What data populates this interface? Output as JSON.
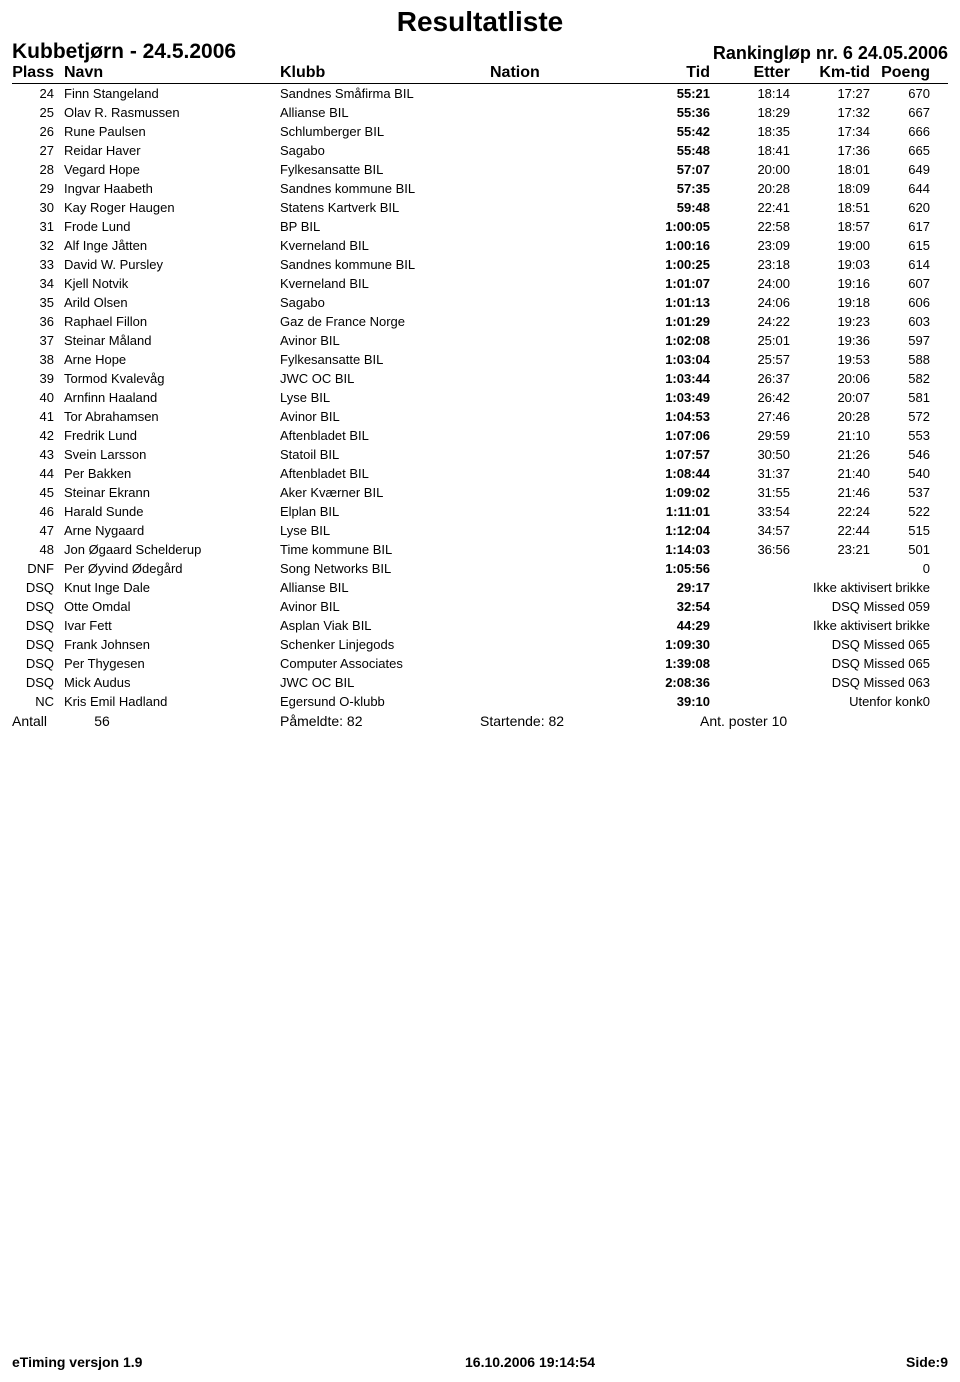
{
  "title": "Resultatliste",
  "subtitle_left": "Kubbetjørn - 24.5.2006",
  "subtitle_right": "Rankingløp nr. 6  24.05.2006",
  "columns": {
    "plass": "Plass",
    "navn": "Navn",
    "klubb": "Klubb",
    "nation": "Nation",
    "tid": "Tid",
    "etter": "Etter",
    "kmtid": "Km-tid",
    "poeng": "Poeng"
  },
  "rows": [
    {
      "plass": "24",
      "navn": "Finn Stangeland",
      "klubb": "Sandnes Småfirma BIL",
      "tid": "55:21",
      "etter": "18:14",
      "kmtid": "17:27",
      "poeng": "670"
    },
    {
      "plass": "25",
      "navn": "Olav R. Rasmussen",
      "klubb": "Allianse BIL",
      "tid": "55:36",
      "etter": "18:29",
      "kmtid": "17:32",
      "poeng": "667"
    },
    {
      "plass": "26",
      "navn": "Rune Paulsen",
      "klubb": "Schlumberger BIL",
      "tid": "55:42",
      "etter": "18:35",
      "kmtid": "17:34",
      "poeng": "666"
    },
    {
      "plass": "27",
      "navn": "Reidar Haver",
      "klubb": "Sagabo",
      "tid": "55:48",
      "etter": "18:41",
      "kmtid": "17:36",
      "poeng": "665"
    },
    {
      "plass": "28",
      "navn": "Vegard Hope",
      "klubb": "Fylkesansatte BIL",
      "tid": "57:07",
      "etter": "20:00",
      "kmtid": "18:01",
      "poeng": "649"
    },
    {
      "plass": "29",
      "navn": "Ingvar Haabeth",
      "klubb": "Sandnes kommune BIL",
      "tid": "57:35",
      "etter": "20:28",
      "kmtid": "18:09",
      "poeng": "644"
    },
    {
      "plass": "30",
      "navn": "Kay Roger Haugen",
      "klubb": "Statens Kartverk BIL",
      "tid": "59:48",
      "etter": "22:41",
      "kmtid": "18:51",
      "poeng": "620"
    },
    {
      "plass": "31",
      "navn": "Frode Lund",
      "klubb": "BP BIL",
      "tid": "1:00:05",
      "etter": "22:58",
      "kmtid": "18:57",
      "poeng": "617"
    },
    {
      "plass": "32",
      "navn": "Alf Inge Jåtten",
      "klubb": "Kverneland BIL",
      "tid": "1:00:16",
      "etter": "23:09",
      "kmtid": "19:00",
      "poeng": "615"
    },
    {
      "plass": "33",
      "navn": "David W. Pursley",
      "klubb": "Sandnes kommune BIL",
      "tid": "1:00:25",
      "etter": "23:18",
      "kmtid": "19:03",
      "poeng": "614"
    },
    {
      "plass": "34",
      "navn": "Kjell Notvik",
      "klubb": "Kverneland BIL",
      "tid": "1:01:07",
      "etter": "24:00",
      "kmtid": "19:16",
      "poeng": "607"
    },
    {
      "plass": "35",
      "navn": "Arild Olsen",
      "klubb": "Sagabo",
      "tid": "1:01:13",
      "etter": "24:06",
      "kmtid": "19:18",
      "poeng": "606"
    },
    {
      "plass": "36",
      "navn": "Raphael Fillon",
      "klubb": "Gaz de France Norge",
      "tid": "1:01:29",
      "etter": "24:22",
      "kmtid": "19:23",
      "poeng": "603"
    },
    {
      "plass": "37",
      "navn": "Steinar Måland",
      "klubb": "Avinor BIL",
      "tid": "1:02:08",
      "etter": "25:01",
      "kmtid": "19:36",
      "poeng": "597"
    },
    {
      "plass": "38",
      "navn": "Arne Hope",
      "klubb": "Fylkesansatte BIL",
      "tid": "1:03:04",
      "etter": "25:57",
      "kmtid": "19:53",
      "poeng": "588"
    },
    {
      "plass": "39",
      "navn": "Tormod Kvalevåg",
      "klubb": "JWC OC BIL",
      "tid": "1:03:44",
      "etter": "26:37",
      "kmtid": "20:06",
      "poeng": "582"
    },
    {
      "plass": "40",
      "navn": "Arnfinn Haaland",
      "klubb": "Lyse BIL",
      "tid": "1:03:49",
      "etter": "26:42",
      "kmtid": "20:07",
      "poeng": "581"
    },
    {
      "plass": "41",
      "navn": "Tor Abrahamsen",
      "klubb": "Avinor BIL",
      "tid": "1:04:53",
      "etter": "27:46",
      "kmtid": "20:28",
      "poeng": "572"
    },
    {
      "plass": "42",
      "navn": "Fredrik Lund",
      "klubb": "Aftenbladet BIL",
      "tid": "1:07:06",
      "etter": "29:59",
      "kmtid": "21:10",
      "poeng": "553"
    },
    {
      "plass": "43",
      "navn": "Svein Larsson",
      "klubb": "Statoil BIL",
      "tid": "1:07:57",
      "etter": "30:50",
      "kmtid": "21:26",
      "poeng": "546"
    },
    {
      "plass": "44",
      "navn": "Per Bakken",
      "klubb": "Aftenbladet BIL",
      "tid": "1:08:44",
      "etter": "31:37",
      "kmtid": "21:40",
      "poeng": "540"
    },
    {
      "plass": "45",
      "navn": "Steinar Ekrann",
      "klubb": "Aker Kværner BIL",
      "tid": "1:09:02",
      "etter": "31:55",
      "kmtid": "21:46",
      "poeng": "537"
    },
    {
      "plass": "46",
      "navn": "Harald Sunde",
      "klubb": "Elplan BIL",
      "tid": "1:11:01",
      "etter": "33:54",
      "kmtid": "22:24",
      "poeng": "522"
    },
    {
      "plass": "47",
      "navn": "Arne Nygaard",
      "klubb": "Lyse BIL",
      "tid": "1:12:04",
      "etter": "34:57",
      "kmtid": "22:44",
      "poeng": "515"
    },
    {
      "plass": "48",
      "navn": "Jon Øgaard Schelderup",
      "klubb": "Time kommune BIL",
      "tid": "1:14:03",
      "etter": "36:56",
      "kmtid": "23:21",
      "poeng": "501"
    },
    {
      "plass": "DNF",
      "navn": "Per Øyvind Ødegård",
      "klubb": "Song Networks BIL",
      "tid": "1:05:56",
      "etter": "",
      "kmtid": "",
      "poeng": "0"
    },
    {
      "plass": "DSQ",
      "navn": "Knut Inge Dale",
      "klubb": "Allianse BIL",
      "tid": "29:17",
      "status": "Ikke aktivisert brikke"
    },
    {
      "plass": "DSQ",
      "navn": "Otte Omdal",
      "klubb": "Avinor BIL",
      "tid": "32:54",
      "status": "DSQ Missed 059"
    },
    {
      "plass": "DSQ",
      "navn": "Ivar Fett",
      "klubb": "Asplan Viak BIL",
      "tid": "44:29",
      "status": "Ikke aktivisert brikke"
    },
    {
      "plass": "DSQ",
      "navn": "Frank Johnsen",
      "klubb": "Schenker Linjegods",
      "tid": "1:09:30",
      "status": "DSQ Missed 065"
    },
    {
      "plass": "DSQ",
      "navn": "Per Thygesen",
      "klubb": "Computer Associates",
      "tid": "1:39:08",
      "status": "DSQ Missed 065"
    },
    {
      "plass": "DSQ",
      "navn": "Mick Audus",
      "klubb": "JWC OC BIL",
      "tid": "2:08:36",
      "status": "DSQ Missed 063"
    },
    {
      "plass": "NC",
      "navn": "Kris Emil Hadland",
      "klubb": "Egersund O-klubb",
      "tid": "39:10",
      "status": "Utenfor konk0"
    }
  ],
  "summary": {
    "antall_label": "Antall",
    "antall_val": "56",
    "pameldte": "Påmeldte:  82",
    "startende": "Startende: 82",
    "poster": "Ant. poster 10"
  },
  "footer": {
    "left": "eTiming versjon 1.9",
    "center": "16.10.2006 19:14:54",
    "right": "Side:9"
  },
  "style": {
    "background": "#ffffff",
    "text_color": "#000000",
    "font": "Arial",
    "title_fontsize": 28,
    "subtitle_left_fontsize": 21,
    "subtitle_right_fontsize": 18,
    "header_fontsize": 16,
    "row_fontsize": 13,
    "row_lineheight": 19,
    "footer_fontsize": 14,
    "header_border": "#000000"
  }
}
